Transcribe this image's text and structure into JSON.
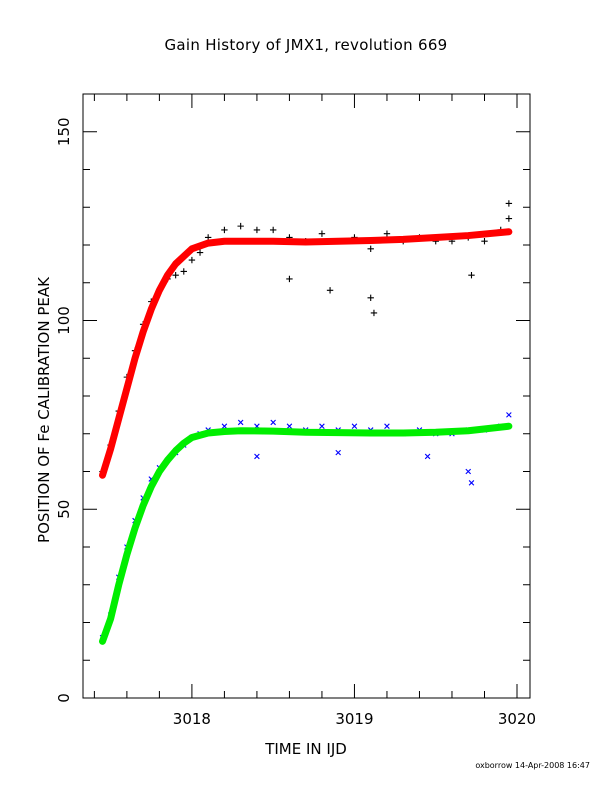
{
  "chart_data": {
    "type": "scatter",
    "title": "Gain History of JMX1, revolution 669",
    "xlabel": "TIME IN IJD",
    "ylabel": "POSITION OF Fe CALIBRATION PEAK",
    "xlim": [
      3017.33,
      3020.08
    ],
    "ylim": [
      0,
      160
    ],
    "x_ticks": [
      3018,
      3019,
      3020
    ],
    "y_ticks": [
      0,
      50,
      100,
      150
    ],
    "grid": false,
    "colors": {
      "series1_points": "#000000",
      "series1_fit": "#ff0000",
      "series2_points": "#0000ff",
      "series2_fit": "#00ee00"
    },
    "series": [
      {
        "marker": "plus",
        "color": "#000000",
        "x": [
          3017.45,
          3017.5,
          3017.55,
          3017.6,
          3017.65,
          3017.7,
          3017.75,
          3017.8,
          3017.85,
          3017.9,
          3017.95,
          3018.0,
          3018.05,
          3018.1,
          3018.2,
          3018.3,
          3018.4,
          3018.5,
          3018.6,
          3018.7,
          3018.8,
          3018.9,
          3019.0,
          3019.1,
          3019.2,
          3019.3,
          3019.4,
          3019.5,
          3019.6,
          3019.7,
          3019.8,
          3019.9,
          3019.95,
          3018.6,
          3018.85,
          3019.1,
          3019.12,
          3019.72,
          3019.95
        ],
        "y": [
          60,
          67,
          76,
          85,
          92,
          99,
          105,
          108,
          111,
          112,
          113,
          116,
          118,
          122,
          124,
          125,
          124,
          124,
          122,
          121,
          123,
          121,
          122,
          119,
          123,
          121,
          122,
          121,
          121,
          122,
          121,
          124,
          131,
          111,
          108,
          106,
          102,
          112,
          127
        ]
      },
      {
        "marker": "line",
        "color": "#ff0000",
        "x": [
          3017.45,
          3017.5,
          3017.55,
          3017.6,
          3017.65,
          3017.7,
          3017.75,
          3017.8,
          3017.85,
          3017.9,
          3017.95,
          3018.0,
          3018.1,
          3018.2,
          3018.3,
          3018.5,
          3018.7,
          3018.9,
          3019.1,
          3019.3,
          3019.5,
          3019.7,
          3019.95
        ],
        "y": [
          59,
          66,
          74,
          82,
          90,
          97,
          103,
          108,
          112,
          115,
          117,
          119,
          120.5,
          121,
          121,
          121,
          120.8,
          121,
          121.2,
          121.5,
          122,
          122.5,
          123.5
        ]
      },
      {
        "marker": "cross",
        "color": "#0000ff",
        "x": [
          3017.45,
          3017.5,
          3017.55,
          3017.6,
          3017.65,
          3017.7,
          3017.75,
          3017.8,
          3017.85,
          3017.9,
          3017.95,
          3018.0,
          3018.05,
          3018.1,
          3018.2,
          3018.3,
          3018.4,
          3018.5,
          3018.6,
          3018.7,
          3018.8,
          3018.9,
          3019.0,
          3019.1,
          3019.2,
          3019.3,
          3019.4,
          3019.5,
          3019.6,
          3019.7,
          3019.8,
          3019.9,
          3019.95,
          3018.4,
          3018.9,
          3019.45,
          3019.7,
          3019.72
        ],
        "y": [
          16,
          22,
          32,
          40,
          47,
          53,
          58,
          61,
          63,
          65,
          67,
          69,
          70,
          71,
          72,
          73,
          72,
          73,
          72,
          71,
          72,
          71,
          72,
          71,
          72,
          70,
          71,
          70,
          70,
          71,
          71,
          72,
          75,
          64,
          65,
          64,
          60,
          57
        ]
      },
      {
        "marker": "line",
        "color": "#00ee00",
        "x": [
          3017.45,
          3017.5,
          3017.55,
          3017.6,
          3017.65,
          3017.7,
          3017.75,
          3017.8,
          3017.85,
          3017.9,
          3017.95,
          3018.0,
          3018.1,
          3018.2,
          3018.3,
          3018.5,
          3018.7,
          3018.9,
          3019.1,
          3019.3,
          3019.5,
          3019.7,
          3019.95
        ],
        "y": [
          15,
          21,
          30,
          38,
          45,
          51,
          56,
          60,
          63,
          65.5,
          67.5,
          69,
          70.2,
          70.6,
          70.8,
          70.7,
          70.4,
          70.3,
          70.2,
          70.2,
          70.4,
          70.8,
          72
        ]
      }
    ]
  },
  "footer": "oxborrow 14-Apr-2008 16:47"
}
